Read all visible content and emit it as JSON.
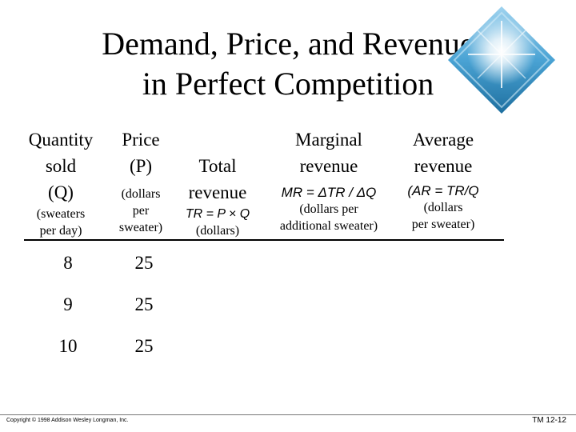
{
  "title": {
    "line1": "Demand, Price, and Revenue",
    "line2": "in Perfect Competition"
  },
  "headers": {
    "quantity": {
      "l1": "Quantity",
      "l2": "sold",
      "l3": "(Q)",
      "s1": "(sweaters",
      "s2": "per day)"
    },
    "price": {
      "l1": "Price",
      "l2": "(P)",
      "s1": "(dollars",
      "s2": "per",
      "s3": "sweater)"
    },
    "total": {
      "l1": "Total",
      "l2": "revenue",
      "formula": "TR = P × Q",
      "s1": "(dollars)"
    },
    "marginal": {
      "l1": "Marginal",
      "l2": "revenue",
      "formula": "MR = ΔTR / ΔQ",
      "s1": "(dollars per",
      "s2": "additional sweater)"
    },
    "average": {
      "l1": "Average",
      "l2": "revenue",
      "formula": "(AR = TR/Q",
      "s1": "(dollars",
      "s2": "per sweater)"
    }
  },
  "rows": [
    {
      "q": "8",
      "p": "25"
    },
    {
      "q": "9",
      "p": "25"
    },
    {
      "q": "10",
      "p": "25"
    }
  ],
  "footer": {
    "copyright": "Copyright © 1998 Addison Wesley Longman, Inc.",
    "slide_id": "TM 12-12"
  },
  "colors": {
    "decor_ocean": "#3a8fc0",
    "decor_glow": "#ffffff"
  },
  "icons": {
    "decor": "ocean-sunburst-image"
  }
}
